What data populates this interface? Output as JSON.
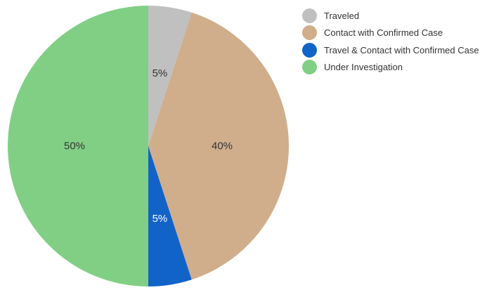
{
  "chart_data": {
    "type": "pie",
    "slices": [
      {
        "label": "Traveled",
        "value": 5,
        "value_label": "5%",
        "color": "#c0c0c0",
        "label_color": "#333333"
      },
      {
        "label": "Contact with Confirmed Case",
        "value": 40,
        "value_label": "40%",
        "color": "#d0ae8c",
        "label_color": "#333333"
      },
      {
        "label": "Travel & Contact with Confirmed Case",
        "value": 5,
        "value_label": "5%",
        "color": "#1263c8",
        "label_color": "#ffffff"
      },
      {
        "label": "Under Investigation",
        "value": 50,
        "value_label": "50%",
        "color": "#81cf85",
        "label_color": "#333333"
      }
    ],
    "start_angle": "12 o'clock",
    "direction": "clockwise",
    "legend_position": "top-right"
  }
}
